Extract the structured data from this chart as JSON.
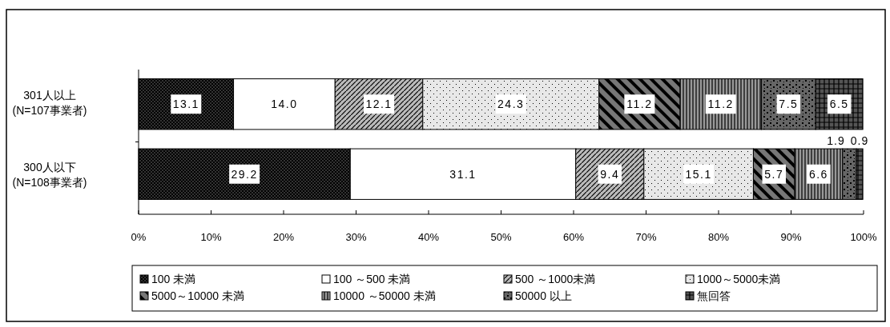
{
  "chart_data": {
    "type": "bar",
    "orientation": "horizontal",
    "stacked": true,
    "categories": [
      "301人以上\n(N=107事業者)",
      "300人以下\n(N=108事業者)"
    ],
    "xlim": [
      0,
      100
    ],
    "xticks": [
      {
        "value": 0,
        "label": "0%"
      },
      {
        "value": 10,
        "label": "10%"
      },
      {
        "value": 20,
        "label": "20%"
      },
      {
        "value": 30,
        "label": "30%"
      },
      {
        "value": 40,
        "label": "40%"
      },
      {
        "value": 50,
        "label": "50%"
      },
      {
        "value": 60,
        "label": "60%"
      },
      {
        "value": 70,
        "label": "70%"
      },
      {
        "value": 80,
        "label": "80%"
      },
      {
        "value": 90,
        "label": "90%"
      },
      {
        "value": 100,
        "label": "100%"
      }
    ],
    "legend": "bottom",
    "grid": false,
    "series": [
      {
        "name": "100 未満",
        "color": "#333333",
        "values": [
          13.1,
          29.2
        ],
        "value_labels": [
          "13.1",
          "29.2"
        ]
      },
      {
        "name": "100 ～500 未満",
        "color": "#ffffff",
        "values": [
          14.0,
          31.1
        ],
        "value_labels": [
          "14.0",
          "31.1"
        ]
      },
      {
        "name": "500 ～1000未満",
        "color": "#bbbbbb",
        "values": [
          12.1,
          9.4
        ],
        "value_labels": [
          "12.1",
          "9.4"
        ]
      },
      {
        "name": "1000～5000未満",
        "color": "#e8e8e8",
        "values": [
          24.3,
          15.1
        ],
        "value_labels": [
          "24.3",
          "15.1"
        ]
      },
      {
        "name": "5000～10000 未満",
        "color": "#777777",
        "values": [
          11.2,
          5.7
        ],
        "value_labels": [
          "11.2",
          "5.7"
        ]
      },
      {
        "name": "10000 ～50000 未満",
        "color": "#999999",
        "values": [
          11.2,
          6.6
        ],
        "value_labels": [
          "11.2",
          "6.6"
        ]
      },
      {
        "name": "50000 以上",
        "color": "#666666",
        "values": [
          7.5,
          1.9
        ],
        "value_labels": [
          "7.5",
          "1.9"
        ]
      },
      {
        "name": "無回答",
        "color": "#555555",
        "values": [
          6.5,
          0.9
        ],
        "value_labels": [
          "6.5",
          "0.9"
        ]
      }
    ]
  }
}
